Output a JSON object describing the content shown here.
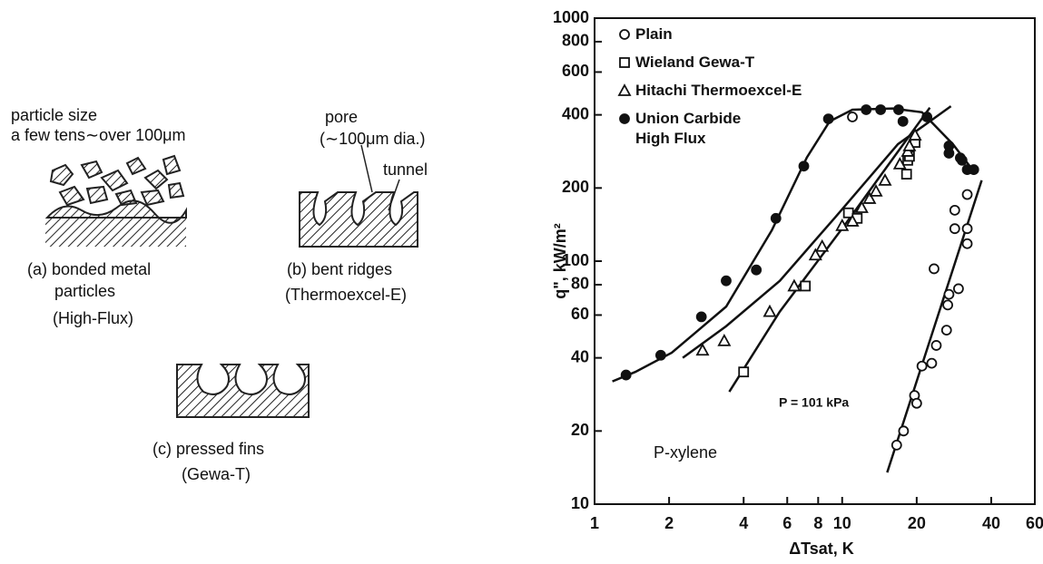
{
  "figures": [
    {
      "labels": [
        "particle size",
        "a few tens∼over 100μm"
      ],
      "caption": [
        "(a) bonded metal",
        "particles",
        "(High-Flux)"
      ]
    },
    {
      "labels": [
        "pore",
        "(∼100μm dia.)",
        "tunnel"
      ],
      "caption": [
        "(b) bent ridges",
        "(Thermoexcel-E)"
      ]
    },
    {
      "caption": [
        "(c) pressed fins",
        "(Gewa-T)"
      ]
    }
  ],
  "chart_data": {
    "type": "scatter",
    "x_label": "ΔTsat, K",
    "y_label": "q\", kW/m²",
    "log_x": true,
    "log_y": true,
    "xlim": [
      1,
      60
    ],
    "xticks": [
      1,
      2,
      4,
      6,
      8,
      10,
      20,
      40,
      60
    ],
    "ylim": [
      10,
      1000
    ],
    "yticks": [
      10,
      20,
      40,
      60,
      80,
      100,
      200,
      400,
      600,
      800,
      1000
    ],
    "legend": "upper left",
    "annotations": [
      "P = 101 kPa",
      "P-xylene"
    ],
    "series": [
      {
        "name": "Plain",
        "marker": "circle-open",
        "color": "#111",
        "x": [
          11,
          23.5,
          28.5,
          28.5,
          32,
          32,
          32,
          27,
          26.7,
          29.5,
          26.4,
          24,
          23,
          21,
          19.6,
          20,
          17.7,
          16.6
        ],
        "values": [
          392,
          93,
          162,
          136,
          136,
          118,
          188,
          73,
          66,
          77,
          52,
          45,
          38,
          37,
          28,
          26,
          20,
          17.5
        ]
      },
      {
        "name": "Wieland Gewa-T",
        "marker": "square-open",
        "color": "#111",
        "x": [
          4.0,
          7.1,
          10.6,
          11.5,
          18.2,
          18.4,
          18.7,
          19.7
        ],
        "values": [
          35,
          79,
          158,
          150,
          228,
          260,
          270,
          308
        ]
      },
      {
        "name": "Hitachi Thermoexcel-E",
        "marker": "triangle-open",
        "color": "#111",
        "x": [
          2.73,
          3.34,
          5.1,
          6.4,
          7.8,
          8.3,
          10,
          11,
          12,
          12.9,
          13.7,
          14.9,
          17.1,
          18.4,
          18.7,
          19.7
        ],
        "values": [
          43,
          47,
          62,
          79,
          106,
          115,
          140,
          146,
          166,
          181,
          194,
          215,
          251,
          283,
          298,
          330
        ]
      },
      {
        "name": "Union Carbide\nHigh Flux",
        "marker": "circle-filled",
        "color": "#111",
        "x": [
          1.34,
          1.85,
          2.7,
          3.4,
          4.5,
          5.4,
          7.0,
          8.8,
          12.5,
          14.3,
          16.9,
          17.6,
          22,
          27,
          27,
          30,
          30.5,
          32,
          34
        ],
        "values": [
          34,
          41,
          59,
          83,
          92,
          150,
          246,
          385,
          420,
          420,
          420,
          376,
          392,
          298,
          278,
          266,
          260,
          238,
          238
        ]
      }
    ],
    "fit_lines": [
      {
        "x": [
          1.18,
          1.46,
          2.05,
          3.4,
          5.2,
          7.2,
          8.9,
          11,
          16,
          21,
          28,
          34
        ],
        "y": [
          32,
          35,
          42,
          65,
          134,
          267,
          376,
          420,
          425,
          410,
          303,
          234
        ]
      },
      {
        "x": [
          2.27,
          3.4,
          5.6,
          9.4,
          16.8,
          27.5
        ],
        "y": [
          40,
          54,
          83,
          152,
          303,
          434
        ]
      },
      {
        "x": [
          3.5,
          5.6,
          10.2,
          16.1,
          22.6
        ],
        "y": [
          29,
          62,
          140,
          266,
          428
        ]
      },
      {
        "x": [
          15.2,
          36.6
        ],
        "y": [
          13.5,
          215
        ]
      }
    ]
  }
}
